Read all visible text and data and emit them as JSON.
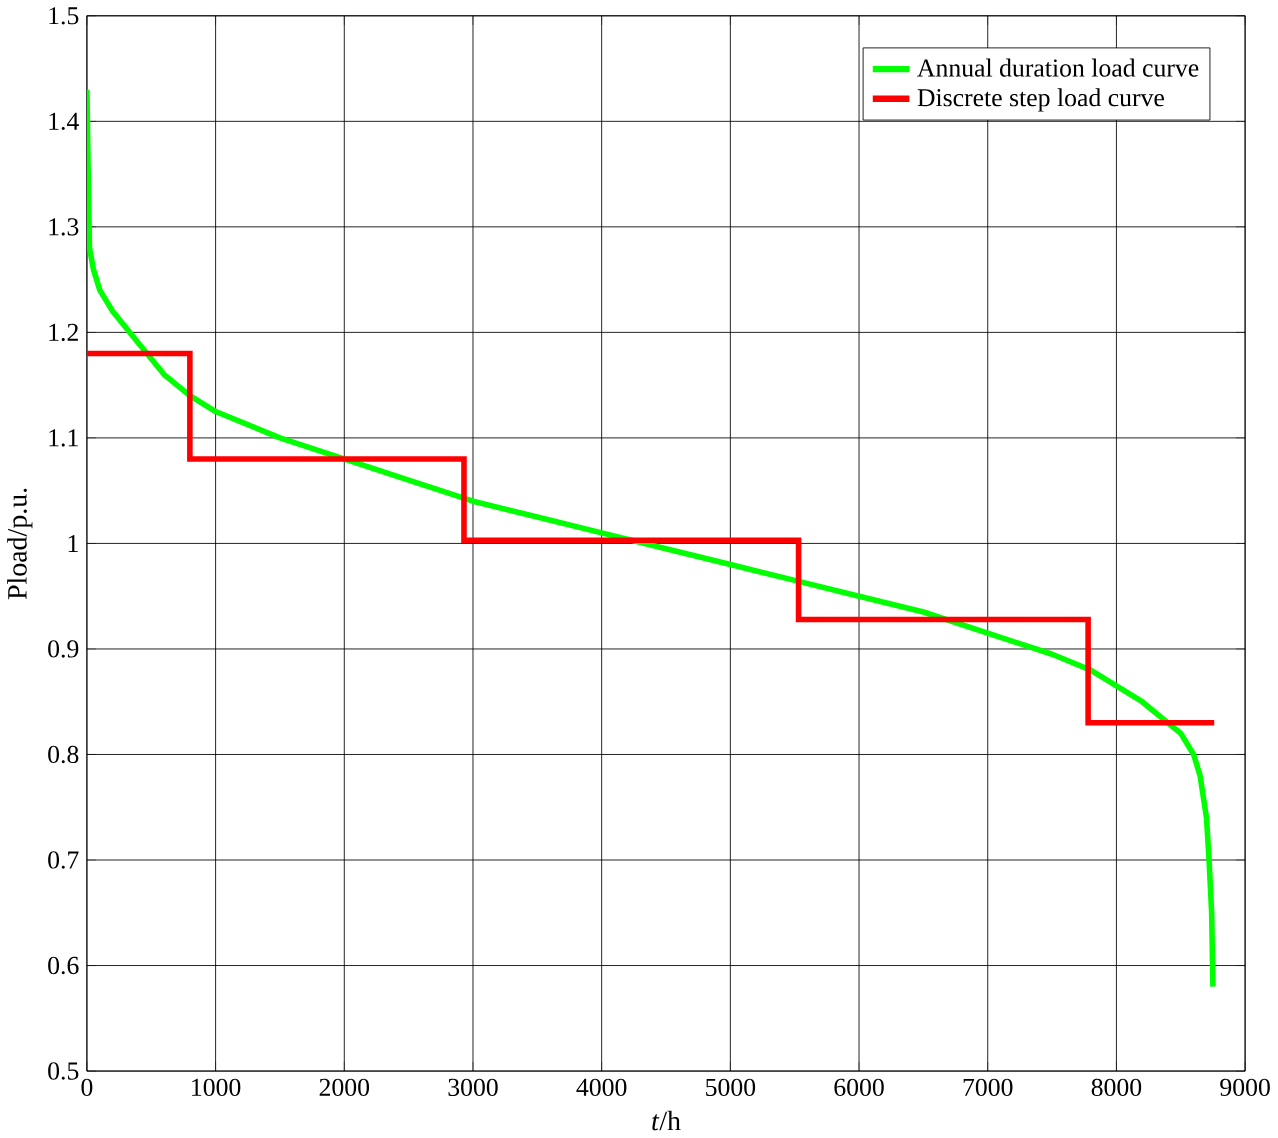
{
  "chart_data": {
    "type": "line",
    "xlabel": "*t*/h",
    "ylabel": "Pload/p.u.",
    "xlim": [
      0,
      9000
    ],
    "ylim": [
      0.5,
      1.5
    ],
    "xticks": [
      0,
      1000,
      2000,
      3000,
      4000,
      5000,
      6000,
      7000,
      8000,
      9000
    ],
    "yticks": [
      0.5,
      0.6,
      0.7,
      0.8,
      0.9,
      1,
      1.1,
      1.2,
      1.3,
      1.4,
      1.5
    ],
    "grid": true,
    "legend": "top right",
    "marker": "none",
    "series": [
      {
        "name": "Annual duration load curve",
        "color": "#00ff00",
        "x": [
          0,
          10,
          20,
          50,
          100,
          200,
          400,
          600,
          800,
          1000,
          1500,
          2000,
          2500,
          3000,
          3500,
          4000,
          4500,
          5000,
          5500,
          6000,
          6500,
          7000,
          7500,
          7800,
          8000,
          8200,
          8400,
          8500,
          8600,
          8650,
          8700,
          8720,
          8740,
          8750
        ],
        "values": [
          1.43,
          1.35,
          1.28,
          1.26,
          1.24,
          1.22,
          1.19,
          1.16,
          1.14,
          1.125,
          1.1,
          1.08,
          1.06,
          1.04,
          1.025,
          1.01,
          0.995,
          0.98,
          0.965,
          0.95,
          0.935,
          0.915,
          0.895,
          0.88,
          0.865,
          0.85,
          0.83,
          0.82,
          0.8,
          0.78,
          0.74,
          0.7,
          0.65,
          0.58
        ]
      },
      {
        "name": "Discrete step load curve",
        "color": "#ff0000",
        "type": "step",
        "x": [
          0,
          800,
          2930,
          5530,
          7780,
          8760
        ],
        "values": [
          1.18,
          1.08,
          1.003,
          0.928,
          0.83,
          0.83
        ]
      }
    ]
  }
}
